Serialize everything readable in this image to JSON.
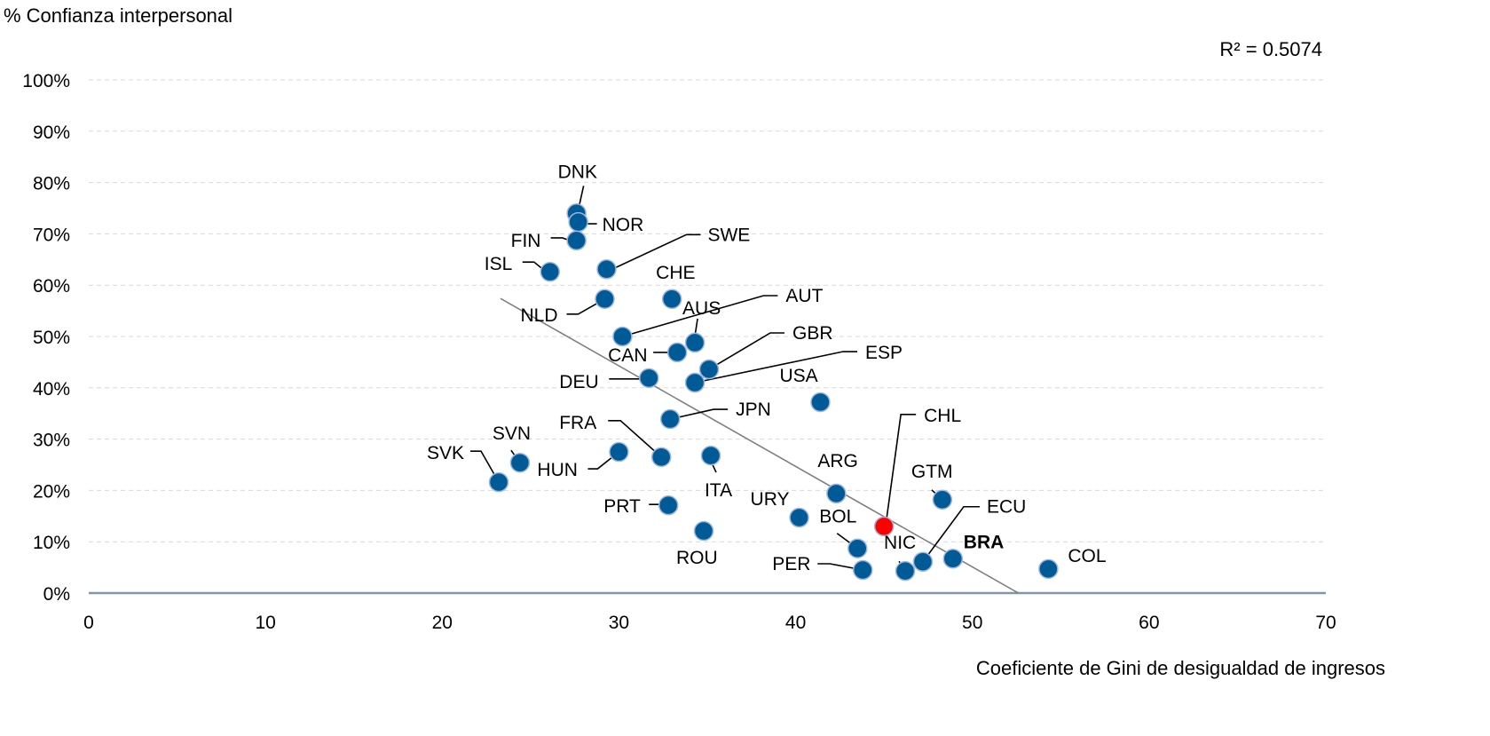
{
  "chart_data": {
    "type": "scatter",
    "title": "",
    "ylabel": "% Confianza interpersonal",
    "xlabel": "Coeficiente de Gini de desigualdad de ingresos",
    "annotation": "R² = 0.5074",
    "xlim": [
      0,
      70
    ],
    "ylim": [
      0,
      100
    ],
    "x_ticks": [
      "0",
      "10",
      "20",
      "30",
      "40",
      "50",
      "60",
      "70"
    ],
    "y_ticks": [
      "0%",
      "10%",
      "20%",
      "30%",
      "40%",
      "50%",
      "60%",
      "70%",
      "80%",
      "90%",
      "100%"
    ],
    "grid": "horizontal dashed",
    "colors": {
      "point": "#005a96",
      "highlight": "#ff0000",
      "trend": "#808080",
      "axis": "#8096ad"
    },
    "points": [
      {
        "label": "DNK",
        "x": 27.6,
        "y": 74.0
      },
      {
        "label": "NOR",
        "x": 27.7,
        "y": 72.3
      },
      {
        "label": "FIN",
        "x": 27.6,
        "y": 68.7
      },
      {
        "label": "ISL",
        "x": 26.1,
        "y": 62.6
      },
      {
        "label": "SWE",
        "x": 29.3,
        "y": 63.1
      },
      {
        "label": "NLD",
        "x": 29.2,
        "y": 57.3
      },
      {
        "label": "CHE",
        "x": 33.0,
        "y": 57.3
      },
      {
        "label": "AUT",
        "x": 30.2,
        "y": 50.0
      },
      {
        "label": "AUS",
        "x": 34.3,
        "y": 48.8
      },
      {
        "label": "CAN",
        "x": 33.3,
        "y": 46.9
      },
      {
        "label": "GBR",
        "x": 35.1,
        "y": 43.6
      },
      {
        "label": "ESP",
        "x": 34.3,
        "y": 41.0
      },
      {
        "label": "DEU",
        "x": 31.7,
        "y": 41.9
      },
      {
        "label": "USA",
        "x": 41.4,
        "y": 37.2
      },
      {
        "label": "JPN",
        "x": 32.9,
        "y": 33.9
      },
      {
        "label": "FRA",
        "x": 32.4,
        "y": 26.5
      },
      {
        "label": "HUN",
        "x": 30.0,
        "y": 27.5
      },
      {
        "label": "ITA",
        "x": 35.2,
        "y": 26.8
      },
      {
        "label": "SVN",
        "x": 24.4,
        "y": 25.4
      },
      {
        "label": "SVK",
        "x": 23.2,
        "y": 21.6
      },
      {
        "label": "PRT",
        "x": 32.8,
        "y": 17.1
      },
      {
        "label": "ROU",
        "x": 34.8,
        "y": 12.1
      },
      {
        "label": "URY",
        "x": 40.2,
        "y": 14.7
      },
      {
        "label": "ARG",
        "x": 42.3,
        "y": 19.4
      },
      {
        "label": "CHL",
        "x": 45.0,
        "y": 13.0,
        "highlight": true
      },
      {
        "label": "GTM",
        "x": 48.3,
        "y": 18.2
      },
      {
        "label": "BOL",
        "x": 43.5,
        "y": 8.7
      },
      {
        "label": "PER",
        "x": 43.8,
        "y": 4.5
      },
      {
        "label": "NIC",
        "x": 46.2,
        "y": 4.3
      },
      {
        "label": "ECU",
        "x": 47.2,
        "y": 6.1
      },
      {
        "label": "BRA",
        "x": 48.9,
        "y": 6.7,
        "bold": true
      },
      {
        "label": "COL",
        "x": 54.3,
        "y": 4.7
      }
    ],
    "trendline": {
      "x": [
        23.3,
        52.6
      ],
      "y": [
        57.4,
        0
      ],
      "r_squared": 0.5074
    }
  }
}
